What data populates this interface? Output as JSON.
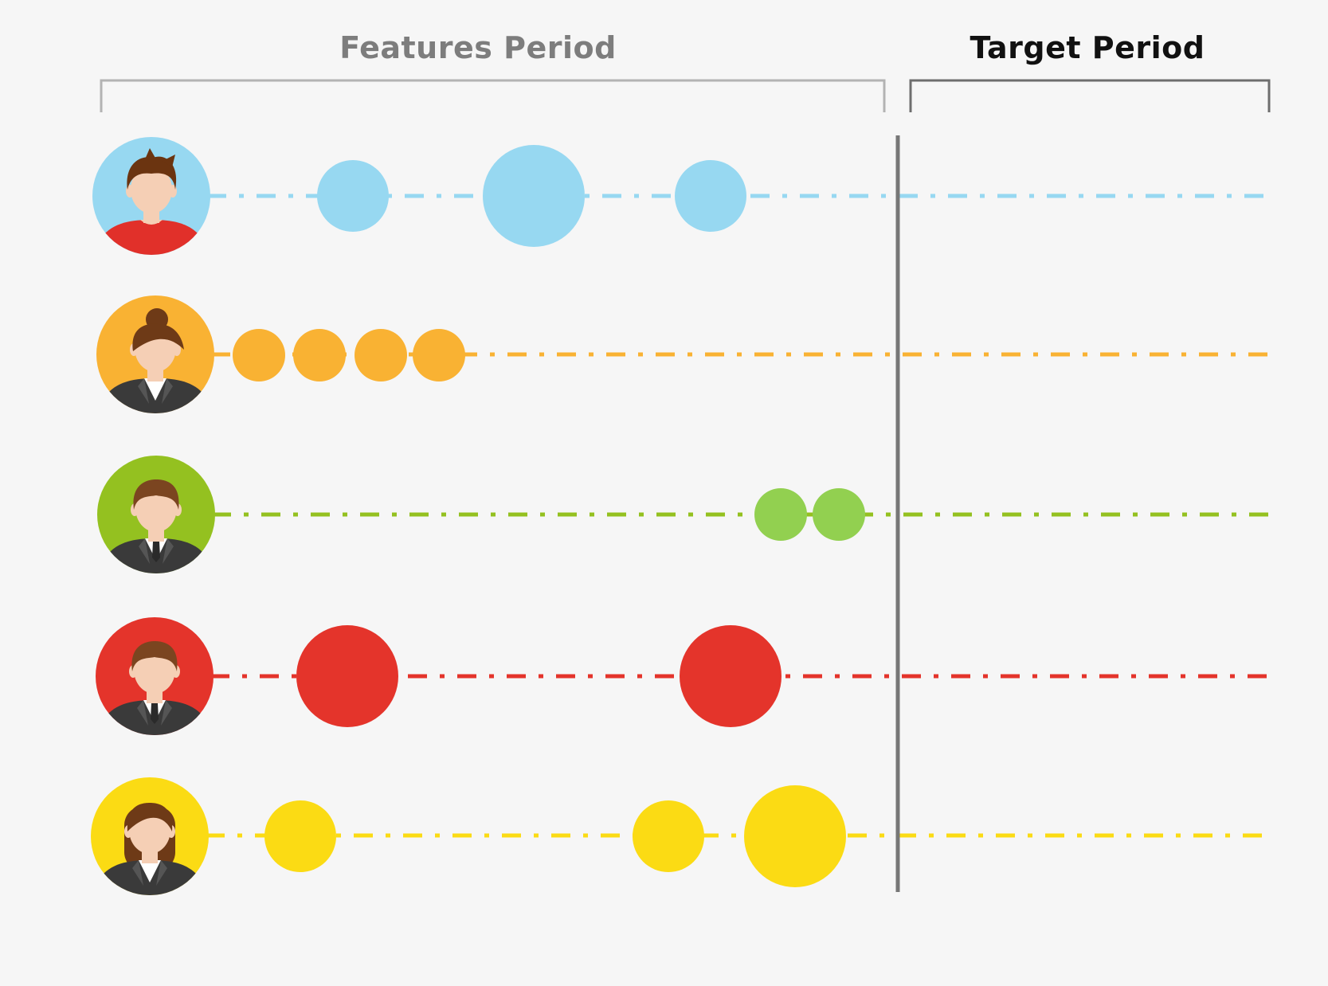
{
  "header": {
    "features_period": "Features Period",
    "target_period": "Target Period"
  },
  "colors": {
    "background": "#f6f6f6",
    "features_bracket": "#b3b3b3",
    "target_bracket": "#6e6e6e",
    "divider": "#777777",
    "skin": "#f5cfb5",
    "suit": "#3a3a3a"
  },
  "users": [
    {
      "id": "user-1",
      "avatar": "man-red-shirt-avatar",
      "color": "#97d8f1",
      "hair": "#6b3410",
      "outfit": "#e1302a",
      "events": [
        {
          "size": "medium"
        },
        {
          "size": "large"
        },
        {
          "size": "medium"
        }
      ]
    },
    {
      "id": "user-2",
      "avatar": "woman-bun-suit-avatar",
      "color": "#f9b233",
      "hair": "#6e3a17",
      "outfit": "#3a3a3a",
      "events": [
        {
          "size": "small"
        },
        {
          "size": "small"
        },
        {
          "size": "small"
        },
        {
          "size": "small"
        }
      ]
    },
    {
      "id": "user-3",
      "avatar": "man-suit-tie-avatar",
      "color": "#94c120",
      "event_color": "#92d050",
      "hair": "#7b4520",
      "outfit": "#3a3a3a",
      "events": [
        {
          "size": "small"
        },
        {
          "size": "small"
        }
      ]
    },
    {
      "id": "user-4",
      "avatar": "man-suit-avatar",
      "color": "#e4342b",
      "hair": "#7b4520",
      "outfit": "#3a3a3a",
      "events": [
        {
          "size": "large"
        },
        {
          "size": "large"
        }
      ]
    },
    {
      "id": "user-5",
      "avatar": "woman-long-hair-avatar",
      "color": "#fbdb14",
      "hair": "#6e3a17",
      "outfit": "#3a3a3a",
      "events": [
        {
          "size": "medium"
        },
        {
          "size": "medium"
        },
        {
          "size": "large"
        }
      ]
    }
  ]
}
